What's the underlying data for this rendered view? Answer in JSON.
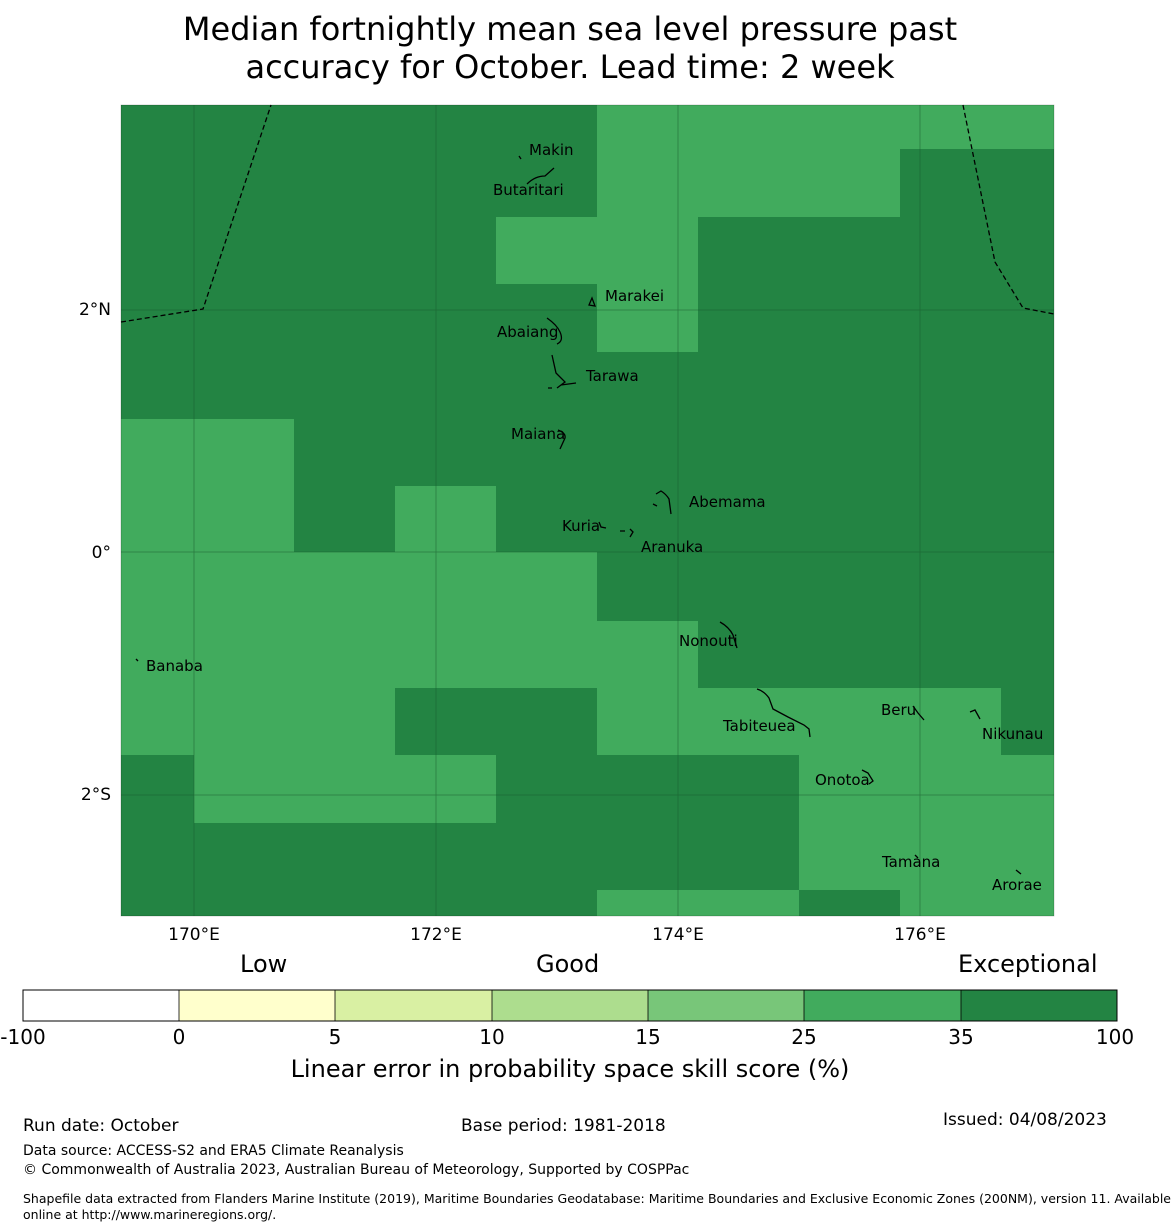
{
  "title_line1": "Median fortnightly mean sea level pressure past",
  "title_line2": "accuracy for October. Lead time: 2 week",
  "map": {
    "lon_range": [
      169.4,
      177.1
    ],
    "lat_range": [
      -3.007,
      3.7
    ],
    "lon_ticks": [
      "170°E",
      "172°E",
      "174°E",
      "176°E"
    ],
    "lat_ticks": [
      "2°N",
      "0°",
      "2°S"
    ],
    "colors": {
      "exceptional": "#238443",
      "good_high": "#41ab5d"
    },
    "places": [
      "Makin",
      "Butaritari",
      "Marakei",
      "Abaiang",
      "Tarawa",
      "Maiana",
      "Abemama",
      "Kuria",
      "Aranuka",
      "Nonouti",
      "Banaba",
      "Tabiteuea",
      "Beru",
      "Nikunau",
      "Onotoa",
      "Tamana",
      "Arorae"
    ]
  },
  "colorbar": {
    "categories": [
      "Low",
      "Good",
      "Exceptional"
    ],
    "ticks": [
      "-100",
      "0",
      "5",
      "10",
      "15",
      "25",
      "35",
      "100"
    ],
    "bin_colors": [
      "#ffffff",
      "#ffffcc",
      "#d9f0a3",
      "#addd8e",
      "#78c679",
      "#41ab5d",
      "#238443"
    ],
    "label": "Linear error in probability space skill score (%)"
  },
  "footer": {
    "run_date": "Run date: October",
    "base_period": "Base period: 1981-2018",
    "issued": "Issued: 04/08/2023",
    "data_source": "Data source: ACCESS-S2 and ERA5 Climate Reanalysis",
    "copyright": "© Commonwealth of Australia 2023, Australian Bureau of Meteorology, Supported by COSPPac",
    "shapefile_line1": "Shapefile data extracted from Flanders Marine Institute (2019), Maritime Boundaries Geodatabase: Maritime Boundaries and Exclusive Economic Zones (200NM), version 11. Available",
    "shapefile_line2": "online at http://www.marineregions.org/."
  }
}
